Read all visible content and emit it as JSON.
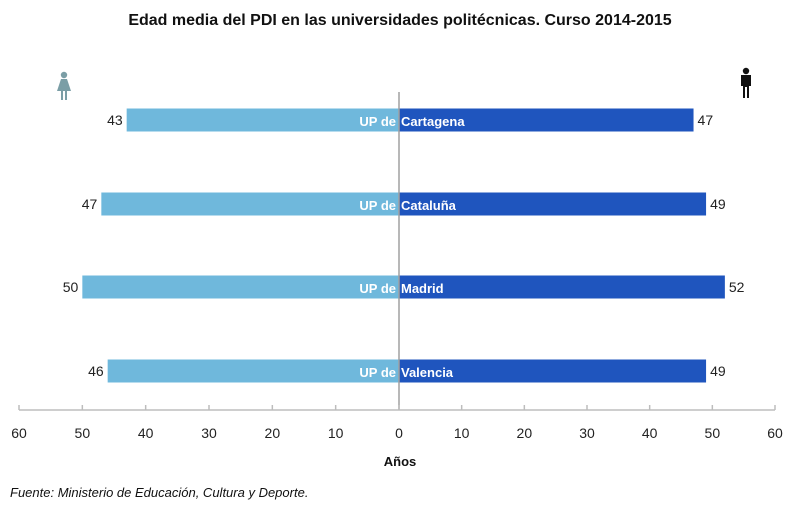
{
  "chart_data": {
    "type": "bar",
    "orientation": "horizontal-butterfly",
    "title": "Edad media del PDI en las universidades politécnicas. Curso 2014-2015",
    "xlabel": "Años",
    "ylabel": "",
    "xlim": [
      -60,
      60
    ],
    "xticks": [
      "60",
      "50",
      "40",
      "30",
      "20",
      "10",
      "0",
      "10",
      "20",
      "30",
      "40",
      "50",
      "60"
    ],
    "category_prefix": "UP de",
    "categories": [
      "Cartagena",
      "Cataluña",
      "Madrid",
      "Valencia"
    ],
    "series": [
      {
        "side": "left",
        "icon": "female-icon",
        "color": "#6fb8dc",
        "values": [
          43,
          47,
          50,
          46
        ]
      },
      {
        "side": "right",
        "icon": "male-icon",
        "color": "#1f55be",
        "values": [
          47,
          49,
          52,
          49
        ]
      }
    ],
    "grid": false,
    "source": "Fuente: Ministerio de Educación, Cultura y Deporte."
  }
}
